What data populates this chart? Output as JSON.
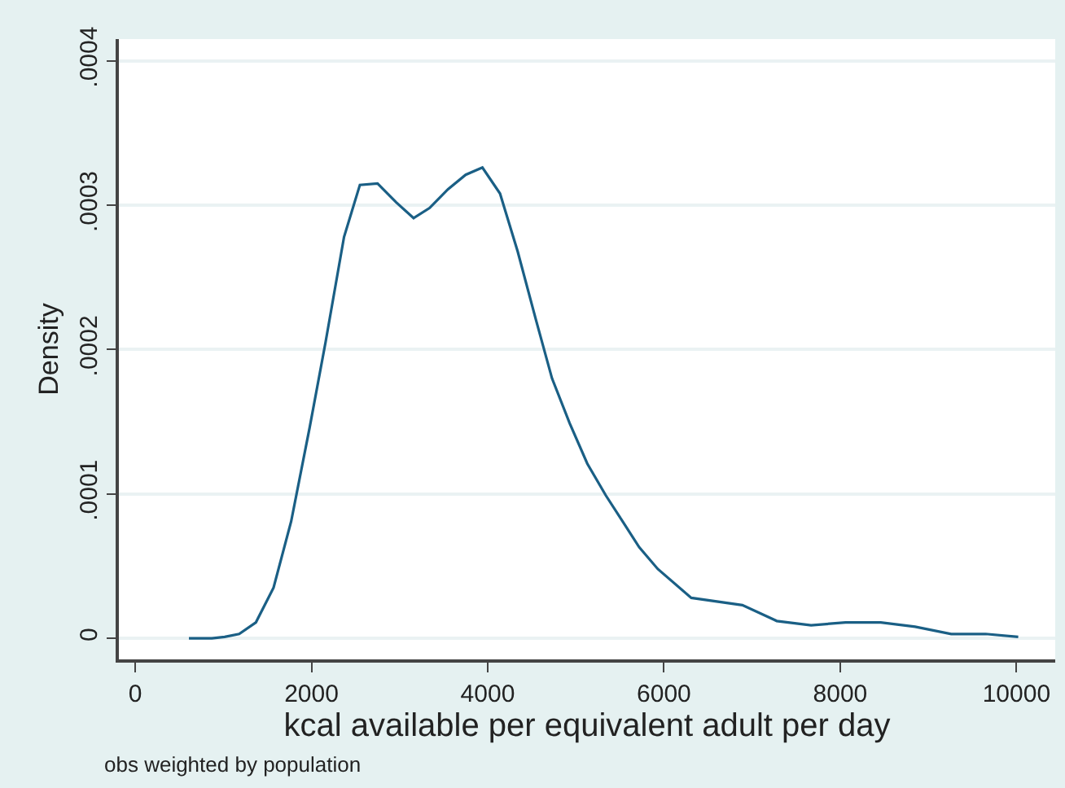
{
  "chart_data": {
    "type": "line",
    "xlabel": "kcal available per equivalent adult per day",
    "ylabel": "Density",
    "annotations": [
      "obs weighted by population"
    ],
    "x": [
      610,
      870,
      1015,
      1180,
      1370,
      1570,
      1770,
      1980,
      2160,
      2370,
      2550,
      2750,
      2960,
      3160,
      3340,
      3550,
      3750,
      3940,
      4140,
      4340,
      4550,
      4730,
      4930,
      5130,
      5340,
      5520,
      5720,
      5930,
      6310,
      6890,
      7280,
      7670,
      8060,
      8460,
      8850,
      9260,
      9650,
      10020
    ],
    "series": [
      {
        "color": "#1a5f85",
        "values": [
          0,
          0,
          1e-06,
          3e-06,
          1.1e-05,
          3.5e-05,
          8.1e-05,
          0.000146,
          0.000205,
          0.000278,
          0.000314,
          0.000315,
          0.000302,
          0.000291,
          0.000298,
          0.000311,
          0.000321,
          0.000326,
          0.000308,
          0.000268,
          0.00022,
          0.00018,
          0.000149,
          0.000121,
          9.9e-05,
          8.2e-05,
          6.3e-05,
          4.8e-05,
          2.8e-05,
          2.3e-05,
          1.2e-05,
          9e-06,
          1.1e-05,
          1.1e-05,
          8e-06,
          3e-06,
          3e-06,
          1e-06
        ]
      }
    ],
    "xlim": [
      -185,
      10440
    ],
    "ylim": [
      -1.46e-05,
      0.000415
    ],
    "xticks": [
      0,
      2000,
      4000,
      6000,
      8000,
      10000
    ],
    "yticks": [
      0,
      {
        "value": 0.0001,
        "label": ".0001"
      },
      {
        "value": 0.0002,
        "label": ".0002"
      },
      {
        "value": 0.0003,
        "label": ".0003"
      },
      {
        "value": 0.0004,
        "label": ".0004"
      }
    ],
    "grid": "y",
    "marker": "none",
    "line_style": "solid"
  }
}
